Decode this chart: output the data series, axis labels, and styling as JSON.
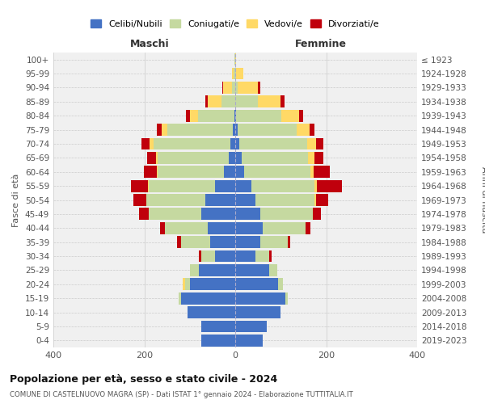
{
  "age_groups": [
    "0-4",
    "5-9",
    "10-14",
    "15-19",
    "20-24",
    "25-29",
    "30-34",
    "35-39",
    "40-44",
    "45-49",
    "50-54",
    "55-59",
    "60-64",
    "65-69",
    "70-74",
    "75-79",
    "80-84",
    "85-89",
    "90-94",
    "95-99",
    "100+"
  ],
  "birth_years": [
    "2019-2023",
    "2014-2018",
    "2009-2013",
    "2004-2008",
    "1999-2003",
    "1994-1998",
    "1989-1993",
    "1984-1988",
    "1979-1983",
    "1974-1978",
    "1969-1973",
    "1964-1968",
    "1959-1963",
    "1954-1958",
    "1949-1953",
    "1944-1948",
    "1939-1943",
    "1934-1938",
    "1929-1933",
    "1924-1928",
    "≤ 1923"
  ],
  "male_celibi": [
    75,
    75,
    105,
    120,
    100,
    80,
    45,
    55,
    60,
    75,
    65,
    45,
    25,
    15,
    10,
    5,
    2,
    0,
    0,
    0,
    0
  ],
  "male_coniugati": [
    0,
    0,
    0,
    5,
    10,
    20,
    30,
    65,
    95,
    115,
    130,
    145,
    145,
    155,
    170,
    145,
    80,
    30,
    8,
    3,
    1
  ],
  "male_vedovi": [
    0,
    0,
    0,
    0,
    5,
    0,
    0,
    0,
    0,
    0,
    1,
    2,
    3,
    5,
    8,
    12,
    18,
    30,
    18,
    5,
    1
  ],
  "male_divorziati": [
    0,
    0,
    0,
    0,
    0,
    0,
    5,
    8,
    10,
    22,
    28,
    38,
    28,
    18,
    18,
    10,
    8,
    5,
    2,
    0,
    0
  ],
  "female_celibi": [
    60,
    70,
    100,
    110,
    95,
    75,
    45,
    55,
    60,
    55,
    45,
    35,
    20,
    15,
    8,
    5,
    2,
    0,
    0,
    0,
    0
  ],
  "female_coniugati": [
    0,
    0,
    0,
    5,
    10,
    18,
    30,
    60,
    95,
    115,
    130,
    140,
    145,
    145,
    150,
    130,
    100,
    50,
    5,
    2,
    0
  ],
  "female_vedovi": [
    0,
    0,
    0,
    0,
    0,
    0,
    0,
    0,
    0,
    1,
    2,
    5,
    8,
    15,
    20,
    28,
    38,
    50,
    45,
    15,
    2
  ],
  "female_divorziati": [
    0,
    0,
    0,
    0,
    0,
    0,
    5,
    5,
    10,
    18,
    28,
    55,
    35,
    18,
    15,
    12,
    10,
    8,
    5,
    0,
    0
  ],
  "colors": {
    "celibi": "#4472C4",
    "coniugati": "#C5D9A0",
    "vedovi": "#FFD966",
    "divorziati": "#C0000C"
  },
  "title": "Popolazione per età, sesso e stato civile - 2024",
  "subtitle": "COMUNE DI CASTELNUOVO MAGRA (SP) - Dati ISTAT 1° gennaio 2024 - Elaborazione TUTTITALIA.IT",
  "xlabel_left": "Maschi",
  "xlabel_right": "Femmine",
  "ylabel_left": "Fasce di età",
  "ylabel_right": "Anni di nascita",
  "legend_labels": [
    "Celibi/Nubili",
    "Coniugati/e",
    "Vedovi/e",
    "Divorziati/e"
  ],
  "xlim": 400,
  "bg_color": "#ffffff",
  "plot_bg_color": "#f0f0f0",
  "grid_color": "#cccccc"
}
